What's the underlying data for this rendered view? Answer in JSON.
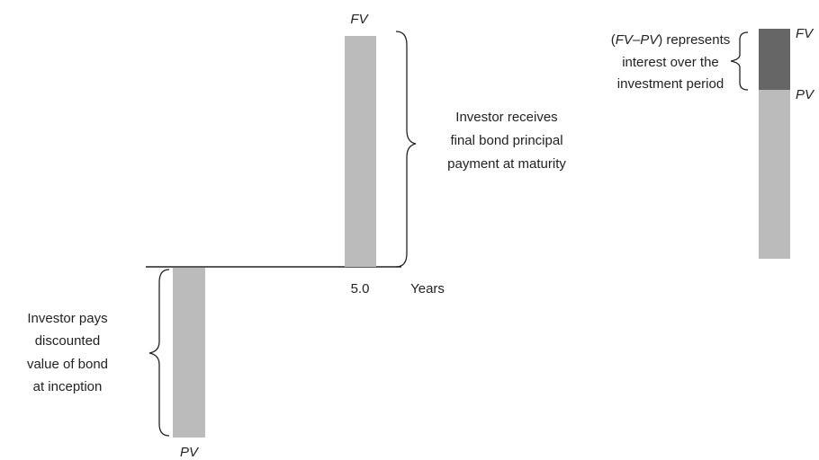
{
  "timeline": {
    "top_label": "FV",
    "top_note": [
      "Investor receives",
      "final bond principal",
      "payment at maturity"
    ],
    "tick": "5.0",
    "axis_label": "Years",
    "bottom_note": [
      "Investor pays",
      "discounted",
      "value of bond",
      "at inception"
    ],
    "bottom_label": "PV"
  },
  "side_bar": {
    "note_first": {
      "open": "(",
      "fv": "FV",
      "dash": "–",
      "pv": "PV",
      "close": ") represents"
    },
    "note_rest": [
      "interest over the",
      "investment period"
    ],
    "fv_label": "FV",
    "pv_label": "PV"
  }
}
